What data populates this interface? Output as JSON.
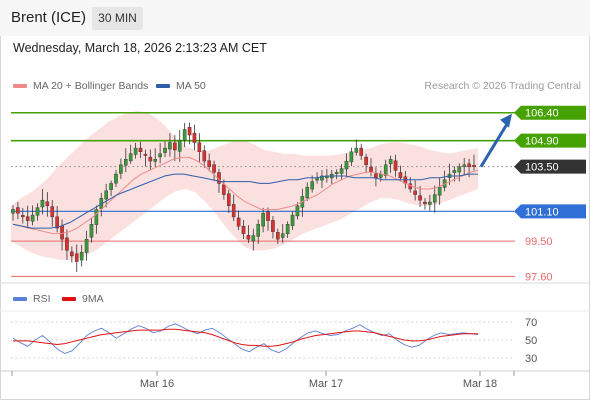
{
  "header": {
    "instrument": "Brent (ICE)",
    "interval": "30 MIN"
  },
  "timestamp": "Wednesday, March 18, 2026 2:13:23 AM CET",
  "legend": {
    "ma20_label": "MA 20 + Bollinger Bands",
    "ma50_label": "MA 50",
    "rsi_label": "RSI",
    "rsi_ma_label": "9MA"
  },
  "credit": "Research © 2026 Trading Central",
  "colors": {
    "ma20": "#f08a8a",
    "bollinger_fill": "#f9d5d5",
    "ma50": "#2e5ea8",
    "bull": "#3a9a3a",
    "bear": "#d93030",
    "resistance": "#46a200",
    "support": "#2f6fd6",
    "lower_support": "#e86a6a",
    "current": "#333333",
    "arrow": "#2a64b0",
    "rsi": "#5b7fd6",
    "rsi_ma": "#e01010"
  },
  "chart_data": {
    "type": "candlestick",
    "instrument": "Brent (ICE)",
    "timeframe": "30 MIN",
    "price_axis": {
      "range": [
        97.3,
        107.3
      ]
    },
    "x_ticks": [
      "Mar 16",
      "Mar 17",
      "Mar 18"
    ],
    "levels": [
      {
        "value": "106.40",
        "type": "resistance"
      },
      {
        "value": "104.90",
        "type": "resistance"
      },
      {
        "value": "103.50",
        "type": "current"
      },
      {
        "value": "101.10",
        "type": "support"
      },
      {
        "value": "99.50",
        "type": "support"
      },
      {
        "value": "97.60",
        "type": "support"
      }
    ],
    "close_series": [
      101.2,
      101.0,
      100.8,
      100.6,
      100.9,
      101.3,
      101.7,
      101.4,
      100.8,
      100.2,
      99.6,
      99.0,
      98.7,
      98.4,
      98.9,
      99.6,
      100.4,
      101.2,
      101.8,
      102.2,
      102.6,
      103.1,
      103.6,
      103.9,
      104.2,
      104.5,
      104.3,
      104.1,
      103.8,
      103.9,
      104.2,
      104.5,
      104.8,
      104.4,
      104.9,
      105.5,
      105.2,
      104.8,
      104.3,
      103.8,
      103.5,
      103.2,
      102.6,
      102.0,
      101.4,
      100.8,
      100.3,
      99.9,
      99.6,
      99.8,
      100.4,
      101.0,
      100.6,
      100.0,
      99.6,
      99.9,
      100.4,
      100.9,
      101.4,
      101.9,
      102.4,
      102.7,
      102.9,
      103.0,
      103.0,
      103.1,
      103.2,
      103.4,
      103.8,
      104.3,
      104.5,
      104.1,
      103.6,
      103.2,
      102.9,
      103.1,
      103.6,
      103.9,
      103.3,
      102.9,
      102.6,
      102.3,
      102.0,
      101.7,
      101.5,
      101.6,
      102.0,
      102.4,
      102.8,
      103.1,
      103.3,
      103.5,
      103.6,
      103.5,
      103.5
    ],
    "ma20_series": [
      100.4,
      100.3,
      100.2,
      100.1,
      100.0,
      99.9,
      99.9,
      100.0,
      100.2,
      100.5,
      100.8,
      101.2,
      101.6,
      102.0,
      102.4,
      102.8,
      103.1,
      103.3,
      103.5,
      103.7,
      103.9,
      104.0,
      104.0,
      103.8,
      103.5,
      103.1,
      102.7,
      102.3,
      101.9,
      101.6,
      101.4,
      101.2,
      101.2,
      101.2,
      101.3,
      101.4,
      101.6,
      101.8,
      102.0,
      102.3,
      102.6,
      102.8,
      103.0,
      103.1,
      103.2,
      103.2,
      103.1,
      103.0,
      102.8,
      102.6,
      102.4,
      102.3,
      102.3,
      102.4,
      102.6,
      102.8,
      103.0,
      103.2,
      103.3
    ],
    "ma50_series": [
      100.4,
      100.3,
      100.2,
      100.2,
      100.2,
      100.3,
      100.5,
      100.8,
      101.1,
      101.4,
      101.7,
      102.0,
      102.2,
      102.4,
      102.6,
      102.8,
      103.0,
      103.1,
      103.1,
      103.0,
      102.9,
      102.8,
      102.7,
      102.7,
      102.7,
      102.7,
      102.6,
      102.6,
      102.7,
      102.8,
      102.8,
      102.9,
      102.9,
      103.0,
      103.0,
      103.0,
      102.9,
      102.9,
      102.9,
      102.8,
      102.8,
      102.8,
      102.8,
      102.8,
      102.9,
      102.9,
      103.0,
      103.0,
      103.1,
      103.1
    ],
    "bollinger_upper": [
      101.4,
      101.8,
      102.1,
      102.5,
      103.0,
      103.6,
      104.1,
      104.6,
      105.1,
      105.5,
      105.9,
      106.2,
      106.4,
      106.5,
      106.4,
      106.1,
      105.6,
      105.0,
      104.6,
      104.4,
      104.3,
      104.5,
      104.7,
      104.9,
      104.9,
      104.7,
      104.4,
      104.3,
      104.2,
      104.2,
      104.1,
      104.1,
      104.1,
      104.1,
      104.2,
      104.3,
      104.4,
      104.5,
      104.7,
      104.8,
      104.8,
      104.7,
      104.6,
      104.4,
      104.3,
      104.2,
      104.3,
      104.4,
      104.5
    ],
    "bollinger_lower": [
      99.5,
      99.2,
      98.9,
      98.7,
      98.6,
      98.5,
      98.5,
      98.6,
      98.8,
      99.1,
      99.5,
      99.9,
      100.3,
      100.7,
      101.1,
      101.5,
      101.9,
      102.2,
      102.3,
      102.1,
      101.6,
      101.0,
      100.3,
      99.7,
      99.2,
      99.0,
      99.0,
      99.1,
      99.3,
      99.6,
      99.9,
      100.1,
      100.3,
      100.5,
      100.7,
      101.0,
      101.3,
      101.6,
      101.8,
      101.8,
      101.7,
      101.5,
      101.4,
      101.4,
      101.5,
      101.7,
      101.9,
      102.1,
      102.3
    ],
    "forecast_arrow": {
      "from": "103.50",
      "to": "106.40"
    },
    "rsi": {
      "levels": [
        70,
        50,
        30
      ],
      "range": [
        20,
        80
      ],
      "rsi_series": [
        52,
        47,
        43,
        50,
        55,
        48,
        40,
        35,
        38,
        46,
        55,
        60,
        63,
        58,
        52,
        57,
        62,
        66,
        63,
        58,
        60,
        65,
        68,
        64,
        60,
        57,
        61,
        63,
        58,
        52,
        46,
        40,
        37,
        42,
        46,
        39,
        36,
        40,
        47,
        53,
        58,
        60,
        57,
        55,
        56,
        60,
        63,
        67,
        62,
        58,
        55,
        57,
        50,
        45,
        42,
        44,
        50,
        55,
        58,
        56,
        57,
        58,
        57,
        56
      ],
      "ma9_series": [
        49,
        49,
        49,
        48,
        47,
        46,
        45,
        46,
        48,
        50,
        52,
        54,
        56,
        57,
        58,
        59,
        60,
        61,
        61,
        61,
        61,
        62,
        62,
        61,
        60,
        59,
        58,
        56,
        53,
        50,
        47,
        45,
        44,
        44,
        43,
        43,
        44,
        46,
        48,
        51,
        53,
        55,
        56,
        57,
        58,
        59,
        60,
        60,
        59,
        58,
        56,
        54,
        52,
        50,
        49,
        49,
        50,
        52,
        54,
        55,
        56,
        57,
        57,
        57
      ]
    }
  }
}
